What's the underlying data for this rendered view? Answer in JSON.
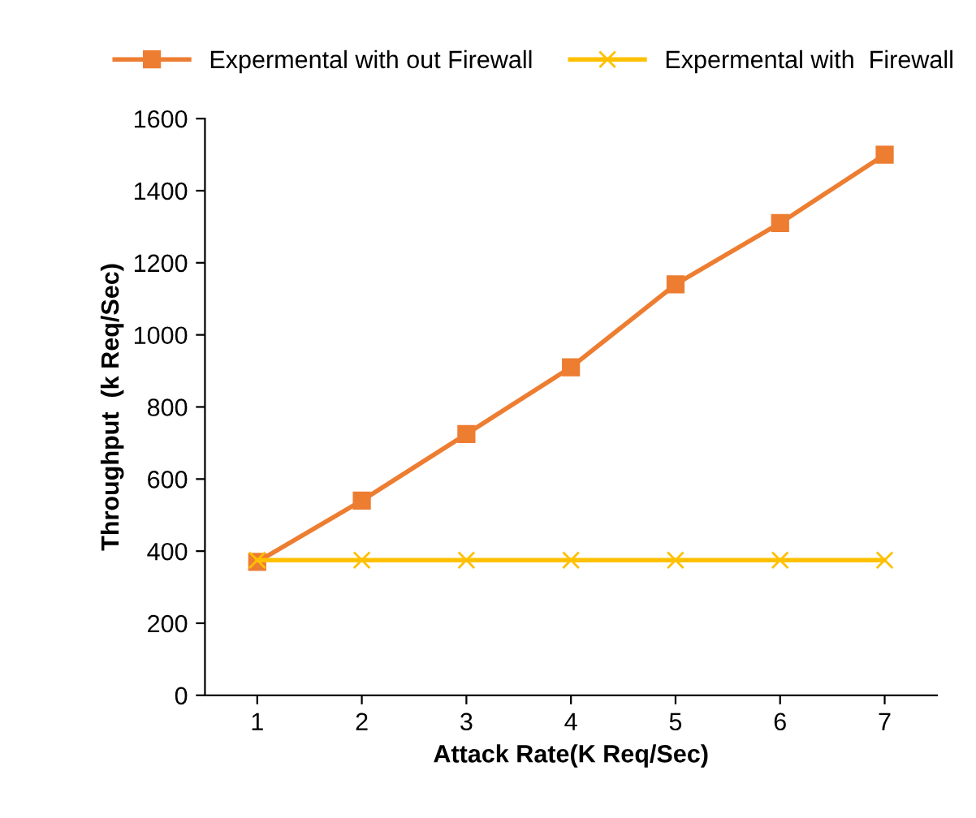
{
  "chart_data": {
    "type": "line",
    "xlabel": "Attack Rate(K Req/Sec)",
    "ylabel": "Throughput  (k Req/Sec)",
    "categories": [
      "1",
      "2",
      "3",
      "4",
      "5",
      "6",
      "7"
    ],
    "series": [
      {
        "name": "Expermental with out Firewall",
        "color": "#ed7d31",
        "marker": "square",
        "values": [
          370,
          540,
          725,
          910,
          1140,
          1310,
          1500
        ]
      },
      {
        "name": "Expermental with  Firewall",
        "color": "#ffc000",
        "marker": "cross",
        "values": [
          375,
          375,
          375,
          375,
          375,
          375,
          375
        ]
      }
    ],
    "ylim": [
      0,
      1600
    ],
    "yticks": [
      0,
      200,
      400,
      600,
      800,
      1000,
      1200,
      1400,
      1600
    ],
    "grid": false,
    "legend": "top",
    "line_style": "solid"
  }
}
